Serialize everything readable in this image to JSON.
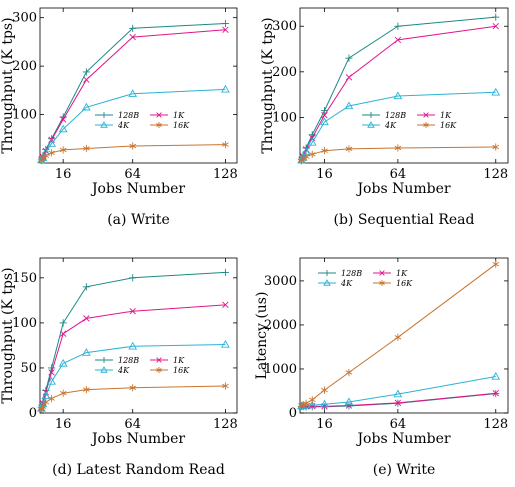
{
  "colors": {
    "128B": "#1b8a84",
    "1K": "#e0158c",
    "4K": "#2ab3d6",
    "16K": "#c8742e"
  },
  "legend_order": [
    "128B",
    "1K",
    "4K",
    "16K"
  ],
  "chart_data": [
    {
      "type": "line",
      "caption": "(a) Write",
      "ylabel": "Throughput (K tps)",
      "xlabel": "Jobs Number",
      "xticks": [
        16,
        64,
        128
      ],
      "yticks": [
        100,
        200,
        300
      ],
      "xlim": [
        0,
        136
      ],
      "ylim": [
        0,
        320
      ],
      "legend_position": "center-right",
      "x": [
        1,
        2,
        4,
        8,
        16,
        32,
        64,
        128
      ],
      "series": [
        {
          "name": "128B",
          "marker": "plus",
          "values": [
            8,
            15,
            28,
            50,
            95,
            188,
            278,
            288
          ]
        },
        {
          "name": "1K",
          "marker": "x",
          "values": [
            7,
            13,
            25,
            48,
            90,
            172,
            260,
            275
          ]
        },
        {
          "name": "4K",
          "marker": "triangle",
          "values": [
            6,
            11,
            22,
            40,
            70,
            115,
            143,
            152
          ]
        },
        {
          "name": "16K",
          "marker": "star",
          "values": [
            5,
            9,
            15,
            21,
            27,
            30,
            35,
            38
          ]
        }
      ]
    },
    {
      "type": "line",
      "caption": "(b) Sequential Read",
      "ylabel": "Throughput (K tps)",
      "xlabel": "Jobs Number",
      "xticks": [
        16,
        64,
        128
      ],
      "yticks": [
        100,
        200,
        300
      ],
      "xlim": [
        0,
        136
      ],
      "ylim": [
        0,
        340
      ],
      "legend_position": "center-right",
      "x": [
        1,
        2,
        4,
        8,
        16,
        32,
        64,
        128
      ],
      "series": [
        {
          "name": "128B",
          "marker": "plus",
          "values": [
            8,
            17,
            33,
            62,
            115,
            230,
            300,
            320
          ]
        },
        {
          "name": "1K",
          "marker": "x",
          "values": [
            7,
            15,
            30,
            55,
            105,
            188,
            270,
            300
          ]
        },
        {
          "name": "4K",
          "marker": "triangle",
          "values": [
            6,
            12,
            24,
            45,
            90,
            125,
            147,
            155
          ]
        },
        {
          "name": "16K",
          "marker": "star",
          "values": [
            5,
            9,
            14,
            19,
            27,
            31,
            33,
            35
          ]
        }
      ]
    },
    {
      "type": "line",
      "caption": "(d) Latest Random Read",
      "ylabel": "Throughput (K tps)",
      "xlabel": "Jobs Number",
      "xticks": [
        16,
        64,
        128
      ],
      "yticks": [
        0,
        50,
        100,
        150
      ],
      "xlim": [
        0,
        136
      ],
      "ylim": [
        0,
        172
      ],
      "legend_position": "center-right",
      "x": [
        1,
        2,
        4,
        8,
        16,
        32,
        64,
        128
      ],
      "series": [
        {
          "name": "128B",
          "marker": "plus",
          "values": [
            6,
            12,
            25,
            50,
            100,
            140,
            150,
            156
          ]
        },
        {
          "name": "1K",
          "marker": "x",
          "values": [
            6,
            11,
            23,
            45,
            88,
            105,
            113,
            120
          ]
        },
        {
          "name": "4K",
          "marker": "triangle",
          "values": [
            5,
            10,
            19,
            35,
            55,
            67,
            74,
            76
          ]
        },
        {
          "name": "16K",
          "marker": "star",
          "values": [
            4,
            7,
            12,
            16,
            22,
            26,
            28,
            30
          ]
        }
      ]
    },
    {
      "type": "line",
      "caption": "(e) Write",
      "ylabel": "Latency (us)",
      "xlabel": "Jobs Number",
      "xticks": [
        16,
        64,
        128
      ],
      "yticks": [
        0,
        1000,
        2000,
        3000
      ],
      "xlim": [
        0,
        136
      ],
      "ylim": [
        0,
        3520
      ],
      "legend_position": "top-left",
      "x": [
        1,
        2,
        4,
        8,
        16,
        32,
        64,
        128
      ],
      "series": [
        {
          "name": "128B",
          "marker": "plus",
          "values": [
            150,
            145,
            140,
            140,
            140,
            160,
            220,
            440
          ]
        },
        {
          "name": "1K",
          "marker": "x",
          "values": [
            150,
            150,
            150,
            155,
            150,
            170,
            230,
            450
          ]
        },
        {
          "name": "4K",
          "marker": "triangle",
          "values": [
            160,
            165,
            170,
            180,
            200,
            250,
            430,
            830
          ]
        },
        {
          "name": "16K",
          "marker": "star",
          "values": [
            170,
            180,
            220,
            300,
            520,
            920,
            1720,
            3380
          ]
        }
      ]
    }
  ]
}
